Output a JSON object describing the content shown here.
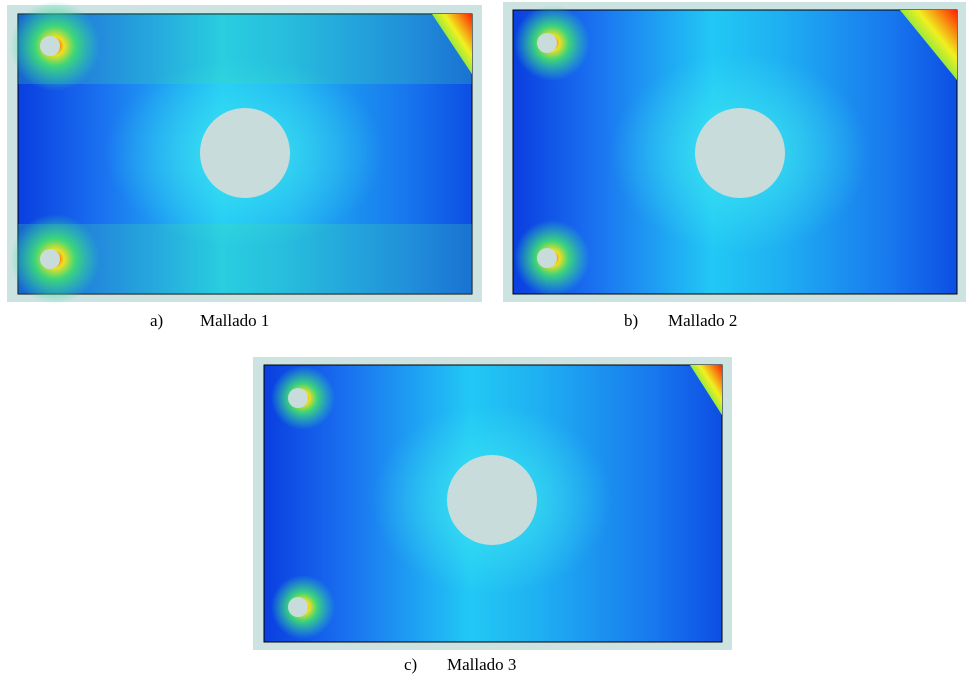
{
  "figures": [
    {
      "label": "a)",
      "caption": "Mallado 1"
    },
    {
      "label": "b)",
      "caption": "Mallado 2"
    },
    {
      "label": "c)",
      "caption": "Mallado 3"
    }
  ]
}
